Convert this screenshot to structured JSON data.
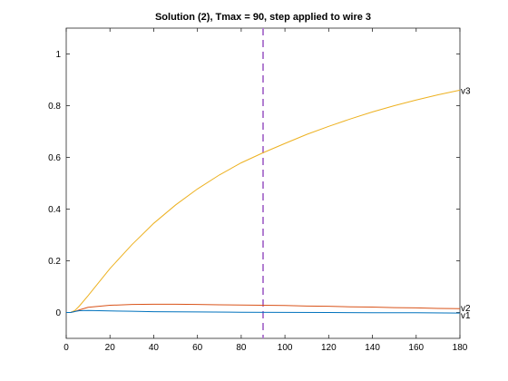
{
  "chart_data": {
    "type": "line",
    "title": "Solution (2), Tmax = 90, step applied to wire 3",
    "xlabel": "",
    "ylabel": "",
    "xlim": [
      0,
      180
    ],
    "ylim": [
      -0.1,
      1.1
    ],
    "xticks": [
      "0",
      "20",
      "40",
      "60",
      "80",
      "100",
      "120",
      "140",
      "160",
      "180"
    ],
    "yticks": [
      "0",
      "0.2",
      "0.4",
      "0.6",
      "0.8",
      "1"
    ],
    "grid": false,
    "legend": "none",
    "vline": {
      "x": 90,
      "color": "#b27ed1",
      "style": "dashed"
    },
    "series": [
      {
        "name": "v3",
        "color": "#edb120",
        "x": [
          0,
          2,
          4,
          6,
          10,
          20,
          30,
          40,
          50,
          60,
          70,
          80,
          90,
          100,
          110,
          120,
          130,
          140,
          150,
          160,
          170,
          180
        ],
        "y": [
          0,
          0,
          0.008,
          0.025,
          0.065,
          0.17,
          0.262,
          0.345,
          0.416,
          0.478,
          0.532,
          0.579,
          0.618,
          0.654,
          0.689,
          0.72,
          0.749,
          0.776,
          0.8,
          0.822,
          0.842,
          0.86
        ]
      },
      {
        "name": "v2",
        "color": "#d95319",
        "x": [
          0,
          2,
          4,
          6,
          10,
          20,
          30,
          40,
          50,
          60,
          70,
          80,
          90,
          100,
          110,
          120,
          130,
          140,
          150,
          160,
          170,
          180
        ],
        "y": [
          0,
          0,
          0.004,
          0.01,
          0.02,
          0.028,
          0.031,
          0.032,
          0.032,
          0.031,
          0.03,
          0.029,
          0.028,
          0.027,
          0.025,
          0.024,
          0.022,
          0.021,
          0.019,
          0.018,
          0.016,
          0.015
        ]
      },
      {
        "name": "v1",
        "color": "#0072bd",
        "x": [
          0,
          2,
          4,
          6,
          10,
          15,
          20,
          30,
          40,
          60,
          80,
          100,
          120,
          140,
          160,
          180
        ],
        "y": [
          0,
          0,
          0.004,
          0.007,
          0.008,
          0.007,
          0.006,
          0.005,
          0.003,
          0.002,
          0.001,
          0.0005,
          0,
          -0.001,
          -0.001,
          -0.002
        ]
      }
    ]
  }
}
